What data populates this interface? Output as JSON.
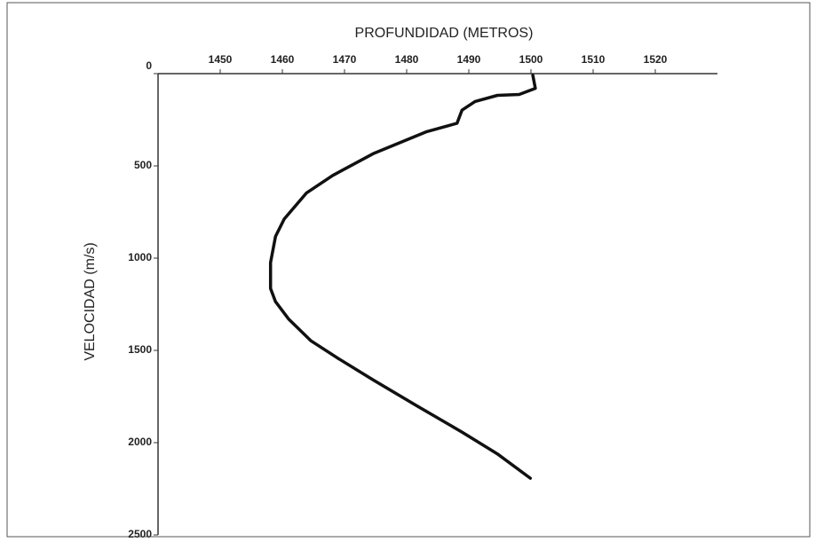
{
  "chart_data": {
    "type": "line",
    "title": "PROFUNDIDAD (METROS)",
    "y_label": "VELOCIDAD (m/s)",
    "x": [
      1500.3,
      1500.7,
      1498.1,
      1494.6,
      1491,
      1488.9,
      1488.1,
      1483.1,
      1474.6,
      1468.1,
      1463.9,
      1460.3,
      1458.9,
      1458.1,
      1458.1,
      1458.9,
      1461,
      1464.6,
      1468.9,
      1474.6,
      1481.7,
      1488.9,
      1494.6,
      1499.9
    ],
    "series": [
      {
        "color": "#111111",
        "values": [
          9,
          80,
          113,
          118,
          151,
          198,
          269,
          316,
          434,
          552,
          646,
          788,
          882,
          1024,
          1165,
          1236,
          1330,
          1448,
          1542,
          1660,
          1802,
          1943,
          2061,
          2193
        ]
      }
    ],
    "xlim": [
      1440,
      1530
    ],
    "xticks": [
      1450,
      1460,
      1470,
      1480,
      1490,
      1500,
      1510,
      1520
    ],
    "ylim": [
      0,
      2500
    ],
    "yticks": [
      0,
      500,
      1000,
      1500,
      2000,
      2500
    ],
    "y_inverted": true,
    "x_axis_position": "top",
    "grid": false
  }
}
